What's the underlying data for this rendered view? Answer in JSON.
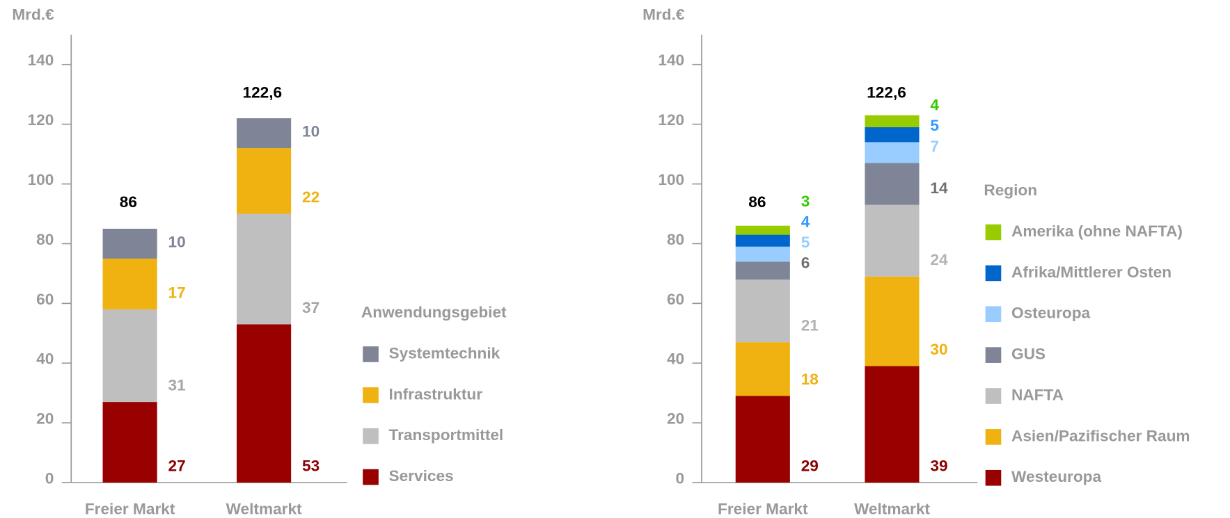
{
  "chart_data": [
    {
      "type": "stacked_bar",
      "y_label": "Mrd.€",
      "categories": [
        "Freier Markt",
        "Weltmarkt"
      ],
      "ylim": [
        0,
        150
      ],
      "yticks": [
        0,
        20,
        40,
        60,
        80,
        100,
        120,
        140
      ],
      "totals": [
        86,
        122.6
      ],
      "totals_labels": [
        "86",
        "122,6"
      ],
      "legend_title": "Anwendungsgebiet",
      "series": [
        {
          "name": "Services",
          "color": "#990000",
          "label_color": "#8b0000",
          "values": [
            27,
            53
          ]
        },
        {
          "name": "Transportmittel",
          "color": "#bfbfbf",
          "label_color": "#a6a6a6",
          "values": [
            31,
            37
          ]
        },
        {
          "name": "Infrastruktur",
          "color": "#efb211",
          "label_color": "#efb211",
          "values": [
            17,
            22
          ]
        },
        {
          "name": "Systemtechnik",
          "color": "#7f8596",
          "label_color": "#7f8596",
          "values": [
            10,
            10
          ]
        }
      ]
    },
    {
      "type": "stacked_bar",
      "y_label": "Mrd.€",
      "categories": [
        "Freier Markt",
        "Weltmarkt"
      ],
      "ylim": [
        0,
        150
      ],
      "yticks": [
        0,
        20,
        40,
        60,
        80,
        100,
        120,
        140
      ],
      "totals": [
        86,
        122.6
      ],
      "totals_labels": [
        "86",
        "122,6"
      ],
      "legend_title": "Region",
      "series": [
        {
          "name": "Westeuropa",
          "color": "#990000",
          "label_color": "#8b0000",
          "values": [
            29,
            39
          ]
        },
        {
          "name": "Asien/Pazifischer Raum",
          "color": "#efb211",
          "label_color": "#efb211",
          "values": [
            18,
            30
          ]
        },
        {
          "name": "NAFTA",
          "color": "#bfbfbf",
          "label_color": "#b3b3b3",
          "values": [
            21,
            24
          ]
        },
        {
          "name": "GUS",
          "color": "#7f8596",
          "label_color": "#707070",
          "values": [
            6,
            14
          ]
        },
        {
          "name": "Osteuropa",
          "color": "#99ccff",
          "label_color": "#99ccff",
          "values": [
            5,
            7
          ]
        },
        {
          "name": "Afrika/Mittlerer Osten",
          "color": "#0066cc",
          "label_color": "#3399ff",
          "values": [
            4,
            5
          ]
        },
        {
          "name": "Amerika (ohne NAFTA)",
          "color": "#99cc00",
          "label_color": "#33cc00",
          "values": [
            3,
            4
          ]
        }
      ]
    }
  ]
}
